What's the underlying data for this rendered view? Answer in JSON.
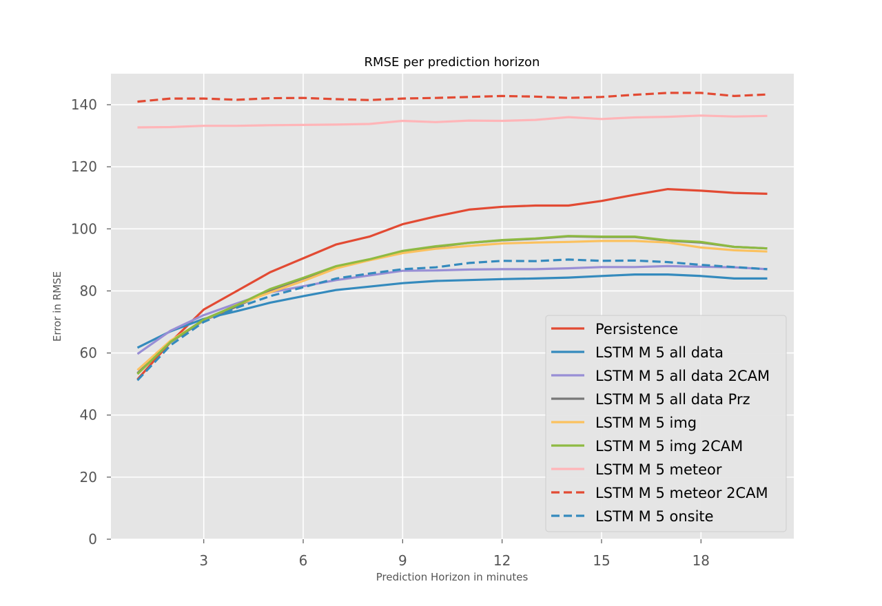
{
  "chart_data": {
    "type": "line",
    "title": "RMSE per prediction horizon",
    "xlabel": "Prediction Horizon in minutes",
    "ylabel": "Error in RMSE",
    "xlim": [
      0.2,
      20.8
    ],
    "ylim": [
      0,
      150
    ],
    "xticks": [
      3,
      6,
      9,
      12,
      15,
      18
    ],
    "yticks": [
      0,
      20,
      40,
      60,
      80,
      100,
      120,
      140
    ],
    "grid": true,
    "legend_position": "lower-right",
    "x": [
      1,
      2,
      3,
      4,
      5,
      6,
      7,
      8,
      9,
      10,
      11,
      12,
      13,
      14,
      15,
      16,
      17,
      18,
      19,
      20
    ],
    "series": [
      {
        "name": "Persistence",
        "color": "#E24A33",
        "dash": "solid",
        "values": [
          51.5,
          63.5,
          74,
          80,
          86,
          90.5,
          95,
          97.5,
          101.5,
          104,
          106.2,
          107.1,
          107.5,
          107.5,
          109,
          111,
          112.8,
          112.3,
          111.6,
          111.3
        ]
      },
      {
        "name": "LSTM M 5 all data",
        "color": "#348ABD",
        "dash": "solid",
        "values": [
          61.7,
          67,
          71,
          73.5,
          76.2,
          78.3,
          80.3,
          81.4,
          82.5,
          83.2,
          83.5,
          83.8,
          84,
          84.3,
          84.8,
          85.3,
          85.3,
          84.8,
          84,
          84
        ]
      },
      {
        "name": "LSTM M 5 all data 2CAM",
        "color": "#988ED5",
        "dash": "solid",
        "values": [
          59.7,
          67.2,
          72.2,
          76,
          79.5,
          81.5,
          83.5,
          85,
          86.5,
          86.6,
          86.9,
          87,
          87,
          87.3,
          87.7,
          87.7,
          88,
          87.8,
          87.6,
          87
        ]
      },
      {
        "name": "LSTM M 5 all data Prz",
        "color": "#777777",
        "dash": "solid",
        "values": [
          53.5,
          63.5,
          70.5,
          75,
          80.2,
          84,
          87.6,
          90,
          92.8,
          94.2,
          95.5,
          96.3,
          96.8,
          97.6,
          97.4,
          97.4,
          96.2,
          95.6,
          94.2,
          93.7
        ]
      },
      {
        "name": "LSTM M 5 img",
        "color": "#FBC15E",
        "dash": "solid",
        "values": [
          54.5,
          64,
          70.6,
          75.5,
          79.5,
          83.2,
          87.3,
          89.9,
          92.2,
          93.6,
          94.5,
          95.3,
          95.6,
          95.8,
          96.1,
          96.1,
          95.6,
          94,
          93.1,
          92.7
        ]
      },
      {
        "name": "LSTM M 5 img 2CAM",
        "color": "#8EBA42",
        "dash": "solid",
        "values": [
          53.2,
          63.6,
          70.8,
          75.4,
          80.6,
          84.2,
          88,
          90.2,
          92.9,
          94.4,
          95.5,
          96.4,
          96.9,
          97.7,
          97.5,
          97.5,
          96.3,
          95.8,
          94.2,
          93.7
        ]
      },
      {
        "name": "LSTM M 5 meteor",
        "color": "#FFB5B8",
        "dash": "solid",
        "values": [
          132.7,
          132.8,
          133.2,
          133.2,
          133.4,
          133.5,
          133.6,
          133.8,
          134.8,
          134.4,
          134.9,
          134.8,
          135.1,
          136,
          135.4,
          135.9,
          136.1,
          136.5,
          136.2,
          136.4
        ]
      },
      {
        "name": "LSTM M 5 meteor 2CAM",
        "color": "#E24A33",
        "dash": "dashed",
        "values": [
          141,
          142,
          142,
          141.6,
          142.1,
          142.2,
          141.8,
          141.5,
          142,
          142.2,
          142.5,
          142.8,
          142.6,
          142.2,
          142.5,
          143.2,
          143.8,
          143.8,
          142.8,
          143.3
        ]
      },
      {
        "name": "LSTM M 5 onsite",
        "color": "#348ABD",
        "dash": "dashed",
        "values": [
          51.2,
          62.5,
          70,
          74.6,
          78.3,
          81.2,
          84,
          85.6,
          87,
          87.6,
          89,
          89.7,
          89.6,
          90.1,
          89.7,
          89.8,
          89.3,
          88.4,
          87.7,
          87
        ]
      }
    ]
  }
}
